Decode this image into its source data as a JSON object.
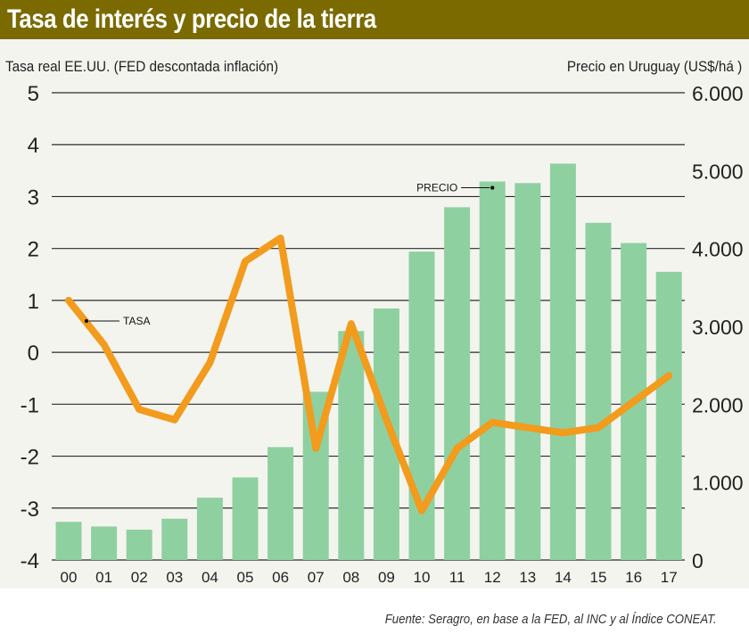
{
  "chart_data": {
    "type": "bar+line",
    "title": "Tasa de interés y precio de la tierra",
    "left_axis_label": "Tasa real EE.UU. (FED  descontada inflación)",
    "right_axis_label": "Precio en Uruguay (US$/há )",
    "source": "Fuente: Seragro, en base a la FED, al INC y al Índice CONEAT.",
    "categories": [
      "00",
      "01",
      "02",
      "03",
      "04",
      "05",
      "06",
      "07",
      "08",
      "09",
      "10",
      "11",
      "12",
      "13",
      "14",
      "15",
      "16",
      "17"
    ],
    "left_ticks": [
      "5",
      "4",
      "3",
      "2",
      "1",
      "0",
      "-1",
      "-2",
      "-3",
      "-4"
    ],
    "right_ticks": [
      "6.000",
      "5.000",
      "4.000",
      "3.000",
      "2.000",
      "1.000",
      "0"
    ],
    "left_ylim": [
      -4,
      5
    ],
    "right_ylim": [
      0,
      6000
    ],
    "series": [
      {
        "name": "PRECIO",
        "axis": "right",
        "kind": "bar",
        "color": "#8fd0a0",
        "values": [
          490,
          430,
          390,
          530,
          800,
          1060,
          1450,
          2160,
          2940,
          3230,
          3960,
          4530,
          4860,
          4840,
          5090,
          4330,
          4070,
          3700
        ]
      },
      {
        "name": "TASA",
        "axis": "left",
        "kind": "line",
        "color": "#f29b1d",
        "values": [
          1.0,
          0.15,
          -1.1,
          -1.3,
          -0.2,
          1.75,
          2.2,
          -1.85,
          0.55,
          -1.3,
          -3.05,
          -1.85,
          -1.35,
          -1.45,
          -1.55,
          -1.45,
          -0.95,
          -0.45
        ]
      }
    ],
    "annotations": [
      {
        "label": "PRECIO",
        "series": "PRECIO",
        "category": "12"
      },
      {
        "label": "TASA",
        "series": "TASA",
        "category": "00"
      }
    ]
  }
}
